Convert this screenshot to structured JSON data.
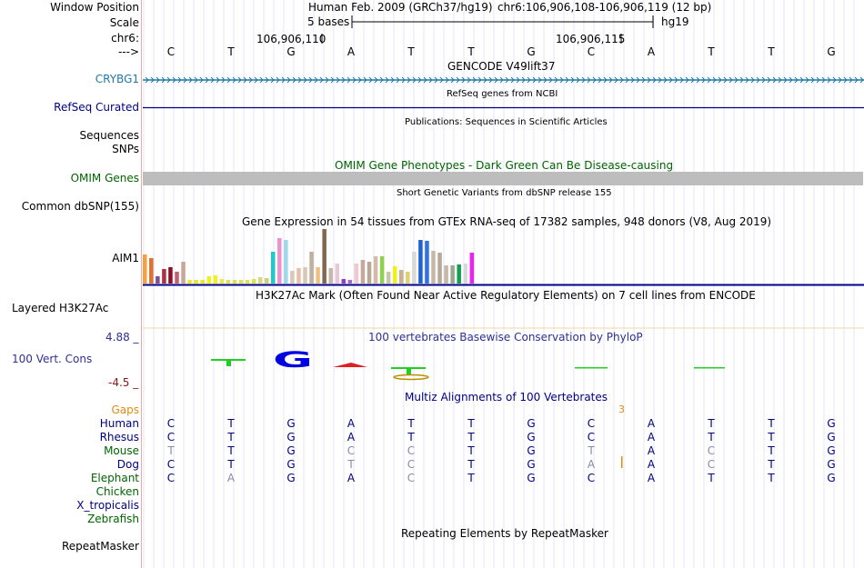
{
  "header": {
    "window_position_label": "Window Position",
    "scale_label": "Scale",
    "chrom_label": "chr6:",
    "arrow_label": "--->",
    "assembly_text": "Human Feb. 2009 (GRCh37/hg19)",
    "position_text": "chr6:106,906,108-106,906,119 (12 bp)",
    "scale_text": "5 bases",
    "db_text": "hg19",
    "coord_left": "106,906,110",
    "coord_right": "106,906,115"
  },
  "sequence": [
    "C",
    "T",
    "G",
    "A",
    "T",
    "T",
    "G",
    "C",
    "A",
    "T",
    "T",
    "G"
  ],
  "tracks": {
    "gencode": {
      "title": "GENCODE V49lift37",
      "gene_label": "CRYBG1"
    },
    "refseq": {
      "title": "RefSeq genes from NCBI",
      "label": "RefSeq Curated"
    },
    "publications": {
      "title": "Publications: Sequences in Scientific Articles",
      "label1": "Sequences",
      "label2": "SNPs"
    },
    "omim": {
      "title": "OMIM Gene Phenotypes - Dark Green Can Be Disease-causing",
      "label": "OMIM Genes"
    },
    "dbsnp": {
      "title": "Short Genetic Variants from dbSNP release 155",
      "label": "Common dbSNP(155)"
    },
    "gtex": {
      "title": "Gene Expression in 54 tissues from GTEx RNA-seq of 17382 samples, 948 donors (V8, Aug 2019)",
      "label": "AIM1"
    },
    "h3k27ac": {
      "title": "H3K27Ac Mark (Often Found Near Active Regulatory Elements) on 7 cell lines from ENCODE",
      "label": "Layered H3K27Ac"
    },
    "phylop": {
      "title": "100 vertebrates Basewise Conservation by PhyloP",
      "label": "100 Vert. Cons",
      "max": "4.88 _",
      "min": "-4.5 _"
    },
    "multiz": {
      "title": "Multiz Alignments of 100 Vertebrates",
      "gaps_label": "Gaps",
      "gap_count": "3"
    },
    "repeatmasker": {
      "title": "Repeating Elements by RepeatMasker",
      "label": "RepeatMasker"
    }
  },
  "gtex_bars": [
    {
      "value": 32,
      "color": "#f6a040"
    },
    {
      "value": 28,
      "color": "#e07030"
    },
    {
      "value": 8,
      "color": "#7f4f8f"
    },
    {
      "value": 16,
      "color": "#b03040"
    },
    {
      "value": 18,
      "color": "#8b1020"
    },
    {
      "value": 13,
      "color": "#c06070"
    },
    {
      "value": 24,
      "color": "#c8a898"
    },
    {
      "value": 4,
      "color": "#e8e820"
    },
    {
      "value": 4,
      "color": "#e8e820"
    },
    {
      "value": 4,
      "color": "#e8e820"
    },
    {
      "value": 8,
      "color": "#f0f020"
    },
    {
      "value": 9,
      "color": "#f0f020"
    },
    {
      "value": 5,
      "color": "#e8e850"
    },
    {
      "value": 4,
      "color": "#e0e050"
    },
    {
      "value": 4,
      "color": "#e0e050"
    },
    {
      "value": 4,
      "color": "#e0e050"
    },
    {
      "value": 4,
      "color": "#e0e050"
    },
    {
      "value": 5,
      "color": "#e0e050"
    },
    {
      "value": 7,
      "color": "#d8d880"
    },
    {
      "value": 6,
      "color": "#d0d070"
    },
    {
      "value": 35,
      "color": "#20c8c8"
    },
    {
      "value": 50,
      "color": "#f090d0"
    },
    {
      "value": 48,
      "color": "#a0d8e8"
    },
    {
      "value": 14,
      "color": "#d8c8b8"
    },
    {
      "value": 17,
      "color": "#e8c0a8"
    },
    {
      "value": 18,
      "color": "#d8c8b8"
    },
    {
      "value": 35,
      "color": "#c0b0a0"
    },
    {
      "value": 18,
      "color": "#f0c080"
    },
    {
      "value": 60,
      "color": "#806850"
    },
    {
      "value": 17,
      "color": "#c8b8a8"
    },
    {
      "value": 22,
      "color": "#e8c8d8"
    },
    {
      "value": 5,
      "color": "#9040c0"
    },
    {
      "value": 4,
      "color": "#a868c8"
    },
    {
      "value": 22,
      "color": "#f0c8d0"
    },
    {
      "value": 26,
      "color": "#c8a898"
    },
    {
      "value": 24,
      "color": "#b8a898"
    },
    {
      "value": 30,
      "color": "#d8b8a8"
    },
    {
      "value": 30,
      "color": "#90d050"
    },
    {
      "value": 13,
      "color": "#c8c8a8"
    },
    {
      "value": 19,
      "color": "#f0f020"
    },
    {
      "value": 15,
      "color": "#c8b090"
    },
    {
      "value": 13,
      "color": "#e0d070"
    },
    {
      "value": 35,
      "color": "#d8d8d8"
    },
    {
      "value": 48,
      "color": "#2060d0"
    },
    {
      "value": 47,
      "color": "#3070e0"
    },
    {
      "value": 36,
      "color": "#c8b8a8"
    },
    {
      "value": 34,
      "color": "#b8a898"
    },
    {
      "value": 20,
      "color": "#c8b8a8"
    },
    {
      "value": 20,
      "color": "#98a888"
    },
    {
      "value": 21,
      "color": "#10a050"
    },
    {
      "value": 22,
      "color": "#d8d8d8"
    },
    {
      "value": 34,
      "color": "#f020f0"
    }
  ],
  "multiz": [
    {
      "species": "Human",
      "color": "#000080",
      "bases": [
        "C",
        "T",
        "G",
        "A",
        "T",
        "T",
        "G",
        "C",
        "A",
        "T",
        "T",
        "G"
      ],
      "light": [
        false,
        false,
        false,
        false,
        false,
        false,
        false,
        false,
        false,
        false,
        false,
        false
      ]
    },
    {
      "species": "Rhesus",
      "color": "#000080",
      "bases": [
        "C",
        "T",
        "G",
        "A",
        "T",
        "T",
        "G",
        "C",
        "A",
        "T",
        "T",
        "G"
      ],
      "light": [
        false,
        false,
        false,
        false,
        false,
        false,
        false,
        false,
        false,
        false,
        false,
        false
      ]
    },
    {
      "species": "Mouse",
      "color": "#006400",
      "bases": [
        "T",
        "T",
        "G",
        "C",
        "C",
        "T",
        "G",
        "T",
        "A",
        "C",
        "T",
        "G"
      ],
      "light": [
        true,
        false,
        false,
        true,
        true,
        false,
        false,
        true,
        false,
        true,
        false,
        false
      ]
    },
    {
      "species": "Dog",
      "color": "#000080",
      "bases": [
        "C",
        "T",
        "G",
        "T",
        "C",
        "T",
        "G",
        "A",
        "A",
        "C",
        "T",
        "G"
      ],
      "light": [
        false,
        false,
        false,
        true,
        true,
        false,
        false,
        true,
        false,
        true,
        false,
        false
      ]
    },
    {
      "species": "Elephant",
      "color": "#006400",
      "bases": [
        "C",
        "A",
        "G",
        "A",
        "C",
        "T",
        "G",
        "C",
        "A",
        "T",
        "T",
        "G"
      ],
      "light": [
        false,
        true,
        false,
        false,
        true,
        false,
        false,
        false,
        false,
        false,
        false,
        false
      ]
    },
    {
      "species": "Chicken",
      "color": "#006400",
      "bases": [],
      "light": []
    },
    {
      "species": "X_tropicalis",
      "color": "#000080",
      "bases": [],
      "light": []
    },
    {
      "species": "Zebrafish",
      "color": "#006400",
      "bases": [],
      "light": []
    }
  ],
  "colors": {
    "gene": "#1f7aa6",
    "refseq": "#000080",
    "omim": "#006400",
    "omim_bar": "#bdbdbd",
    "gaps": "#e08c10",
    "phylop_max": "#303090",
    "phylop_min": "#8b1a1a"
  }
}
